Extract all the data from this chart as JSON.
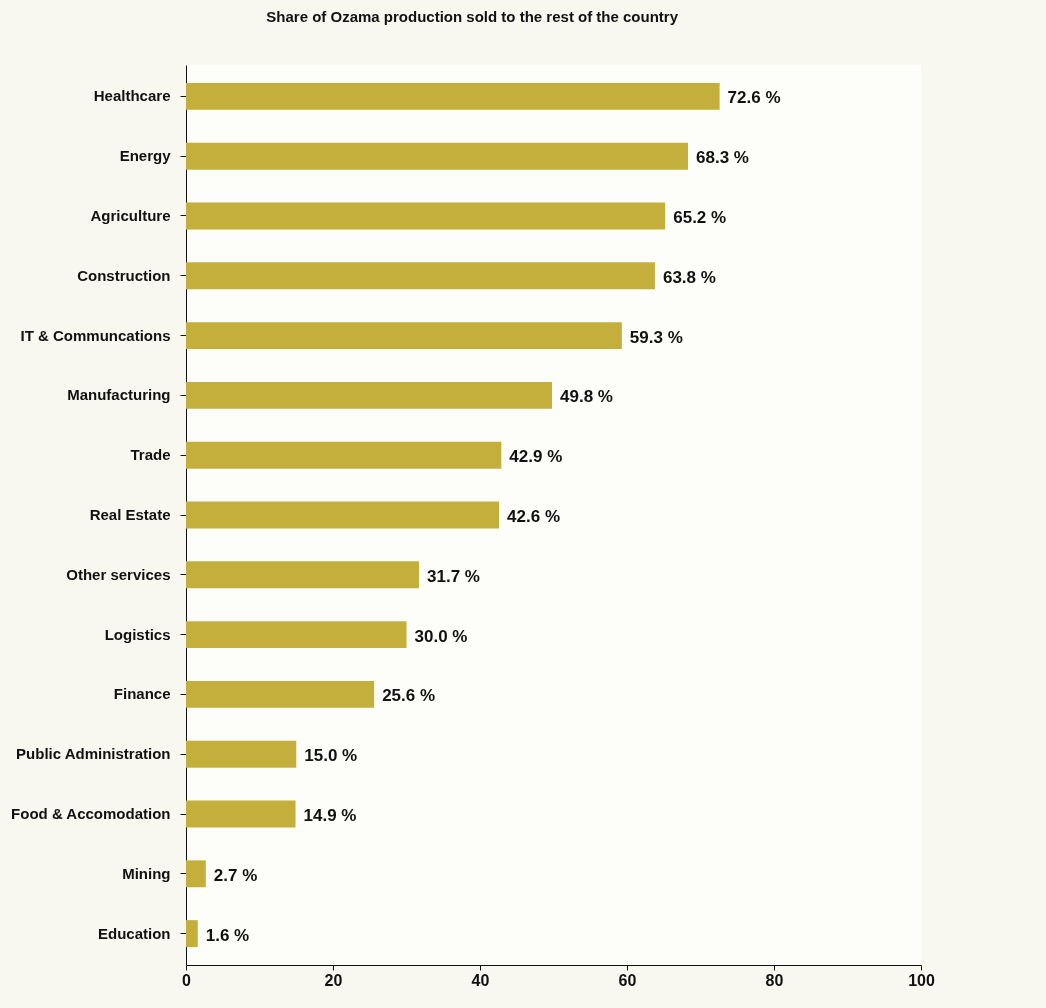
{
  "chart_data": {
    "type": "bar",
    "orientation": "horizontal",
    "title": "Share of Ozama production sold to the rest of the country",
    "categories": [
      "Healthcare",
      "Energy",
      "Agriculture",
      "Construction",
      "IT & Communcations",
      "Manufacturing",
      "Trade",
      "Real Estate",
      "Other services",
      "Logistics",
      "Finance",
      "Public Administration",
      "Food & Accomodation",
      "Mining",
      "Education"
    ],
    "values": [
      72.6,
      68.3,
      65.2,
      63.8,
      59.3,
      49.8,
      42.9,
      42.6,
      31.7,
      30.0,
      25.6,
      15.0,
      14.9,
      2.7,
      1.6
    ],
    "value_labels": [
      "72.6 %",
      "68.3 %",
      "65.2 %",
      "63.8 %",
      "59.3 %",
      "49.8 %",
      "42.9 %",
      "42.6 %",
      "31.7 %",
      "30.0 %",
      "25.6 %",
      "15.0 %",
      "14.9 %",
      "2.7 %",
      "1.6 %"
    ],
    "color": "#c5af3c",
    "xlim": [
      0,
      100
    ],
    "xticks": [
      0,
      20,
      40,
      60,
      80,
      100
    ],
    "grid": false
  }
}
